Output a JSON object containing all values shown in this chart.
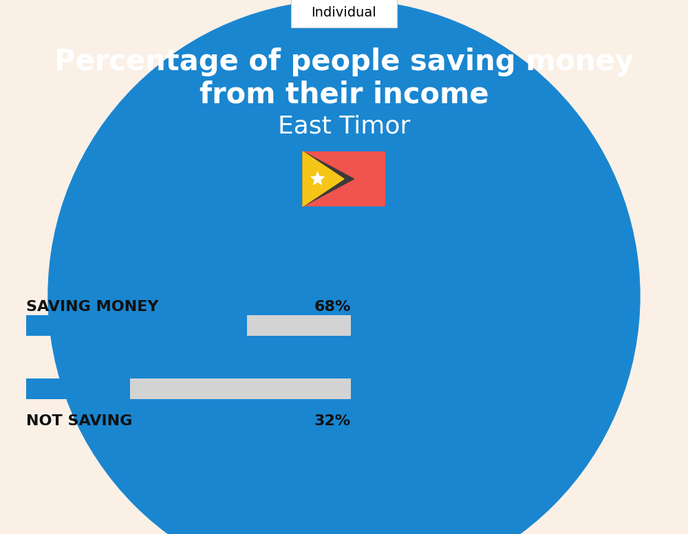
{
  "title_line1": "Percentage of people saving money",
  "title_line2": "from their income",
  "subtitle": "East Timor",
  "tab_label": "Individual",
  "bg_circle_color": "#1A86D0",
  "bg_color": "#FAF0E6",
  "title_color": "#FFFFFF",
  "subtitle_color": "#FFFFFF",
  "tab_bg": "#FFFFFF",
  "tab_border": "#CCCCCC",
  "bar_blue": "#1A86D0",
  "bar_gray": "#D3D3D3",
  "label_color": "#111111",
  "saving_pct": 68,
  "not_saving_pct": 32,
  "saving_label": "SAVING MONEY",
  "not_saving_label": "NOT SAVING",
  "flag_red": "#F0544F",
  "flag_black": "#3A3A3A",
  "flag_yellow": "#F5C518"
}
